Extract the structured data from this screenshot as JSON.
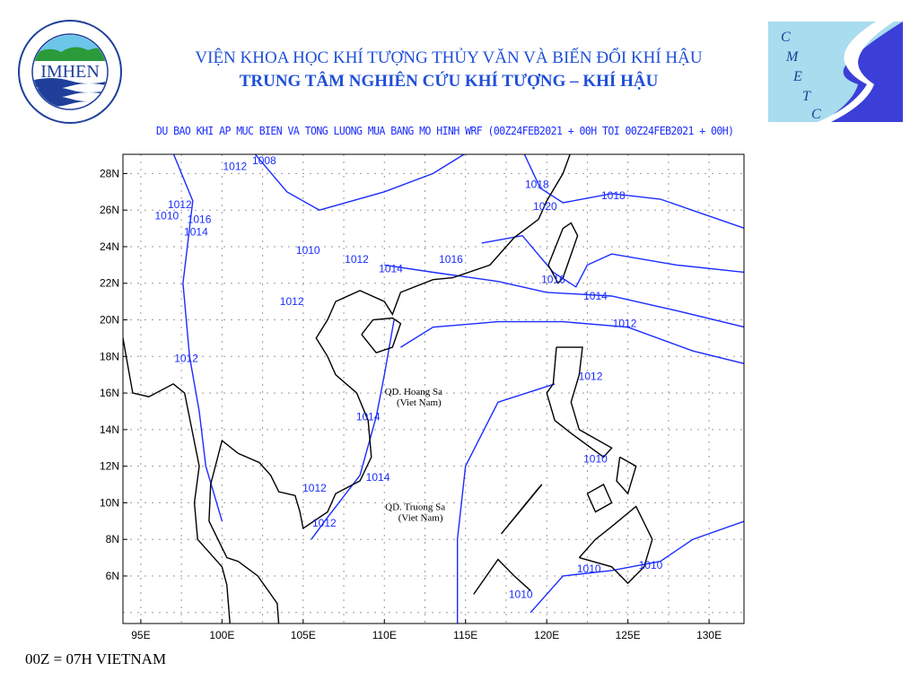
{
  "header": {
    "institute": "VIỆN KHOA HỌC KHÍ TƯỢNG THỦY VĂN VÀ BIẾN ĐỔI KHÍ HẬU",
    "center": "TRUNG TÂM NGHIÊN CỨU KHÍ TƯỢNG – KHÍ HẬU",
    "subtitle": "DU BAO KHI AP MUC BIEN VA TONG LUONG MUA BANG MO HINH WRF (00Z24FEB2021 + 00H TOI 00Z24FEB2021 + 00H)"
  },
  "logos": {
    "left": {
      "text": "IMHEN",
      "ring_top": "VIỆN KHOA HỌC",
      "ring_bottom": "KHÍ TƯỢNG THỦY VĂN VÀ BIẾN ĐỔI KHÍ HẬU"
    },
    "right": {
      "letters": [
        "C",
        "M",
        "E",
        "T",
        "C"
      ]
    }
  },
  "footer": {
    "note": "00Z = 07H VIETNAM"
  },
  "map": {
    "extent": {
      "lon": [
        93.9,
        132.15
      ],
      "lat": [
        3.4,
        29.05
      ]
    },
    "lon_ticks": [
      {
        "v": 95,
        "label": "95E"
      },
      {
        "v": 100,
        "label": "100E"
      },
      {
        "v": 105,
        "label": "105E"
      },
      {
        "v": 110,
        "label": "110E"
      },
      {
        "v": 115,
        "label": "115E"
      },
      {
        "v": 120,
        "label": "120E"
      },
      {
        "v": 125,
        "label": "125E"
      },
      {
        "v": 130,
        "label": "130E"
      }
    ],
    "lat_ticks": [
      {
        "v": 6,
        "label": "6N"
      },
      {
        "v": 8,
        "label": "8N"
      },
      {
        "v": 10,
        "label": "10N"
      },
      {
        "v": 12,
        "label": "12N"
      },
      {
        "v": 14,
        "label": "14N"
      },
      {
        "v": 16,
        "label": "16N"
      },
      {
        "v": 18,
        "label": "18N"
      },
      {
        "v": 20,
        "label": "20N"
      },
      {
        "v": 22,
        "label": "22N"
      },
      {
        "v": 24,
        "label": "24N"
      },
      {
        "v": 26,
        "label": "26N"
      },
      {
        "v": 28,
        "label": "28N"
      }
    ],
    "colors": {
      "coast": "#000000",
      "isobar": "#1a2cff",
      "grid": "#9a9a9a"
    },
    "places": [
      {
        "name": "QD. Hoang Sa",
        "sub": "(Viet Nam)",
        "lon": 111.8,
        "lat": 15.9
      },
      {
        "name": "QD. Truong Sa",
        "sub": "(Viet Nam)",
        "lon": 111.9,
        "lat": 9.6
      }
    ],
    "isobar_labels": [
      {
        "text": "1012",
        "lon": 100.8,
        "lat": 28.4
      },
      {
        "text": "1008",
        "lon": 102.6,
        "lat": 28.7
      },
      {
        "text": "1012",
        "lon": 97.4,
        "lat": 26.3
      },
      {
        "text": "1010",
        "lon": 96.6,
        "lat": 25.7
      },
      {
        "text": "1016",
        "lon": 98.6,
        "lat": 25.5
      },
      {
        "text": "1014",
        "lon": 98.4,
        "lat": 24.8
      },
      {
        "text": "1010",
        "lon": 105.3,
        "lat": 23.8
      },
      {
        "text": "1012",
        "lon": 108.3,
        "lat": 23.3
      },
      {
        "text": "1014",
        "lon": 110.4,
        "lat": 22.8
      },
      {
        "text": "1016",
        "lon": 114.1,
        "lat": 23.3
      },
      {
        "text": "1018",
        "lon": 119.4,
        "lat": 27.4
      },
      {
        "text": "1020",
        "lon": 119.9,
        "lat": 26.2
      },
      {
        "text": "1018",
        "lon": 124.1,
        "lat": 26.8
      },
      {
        "text": "1016",
        "lon": 120.4,
        "lat": 22.2
      },
      {
        "text": "1014",
        "lon": 123.0,
        "lat": 21.3
      },
      {
        "text": "1012",
        "lon": 124.8,
        "lat": 19.8
      },
      {
        "text": "1012",
        "lon": 97.8,
        "lat": 17.9
      },
      {
        "text": "1012",
        "lon": 122.7,
        "lat": 16.9
      },
      {
        "text": "1012",
        "lon": 104.3,
        "lat": 21.0
      },
      {
        "text": "1014",
        "lon": 109.0,
        "lat": 14.7
      },
      {
        "text": "1010",
        "lon": 123.0,
        "lat": 12.4
      },
      {
        "text": "1014",
        "lon": 109.6,
        "lat": 11.4
      },
      {
        "text": "1012",
        "lon": 105.7,
        "lat": 10.8
      },
      {
        "text": "1012",
        "lon": 106.3,
        "lat": 8.9
      },
      {
        "text": "1010",
        "lon": 122.6,
        "lat": 6.4
      },
      {
        "text": "1010",
        "lon": 126.4,
        "lat": 6.6
      },
      {
        "text": "1010",
        "lon": 118.4,
        "lat": 5.0
      }
    ]
  }
}
